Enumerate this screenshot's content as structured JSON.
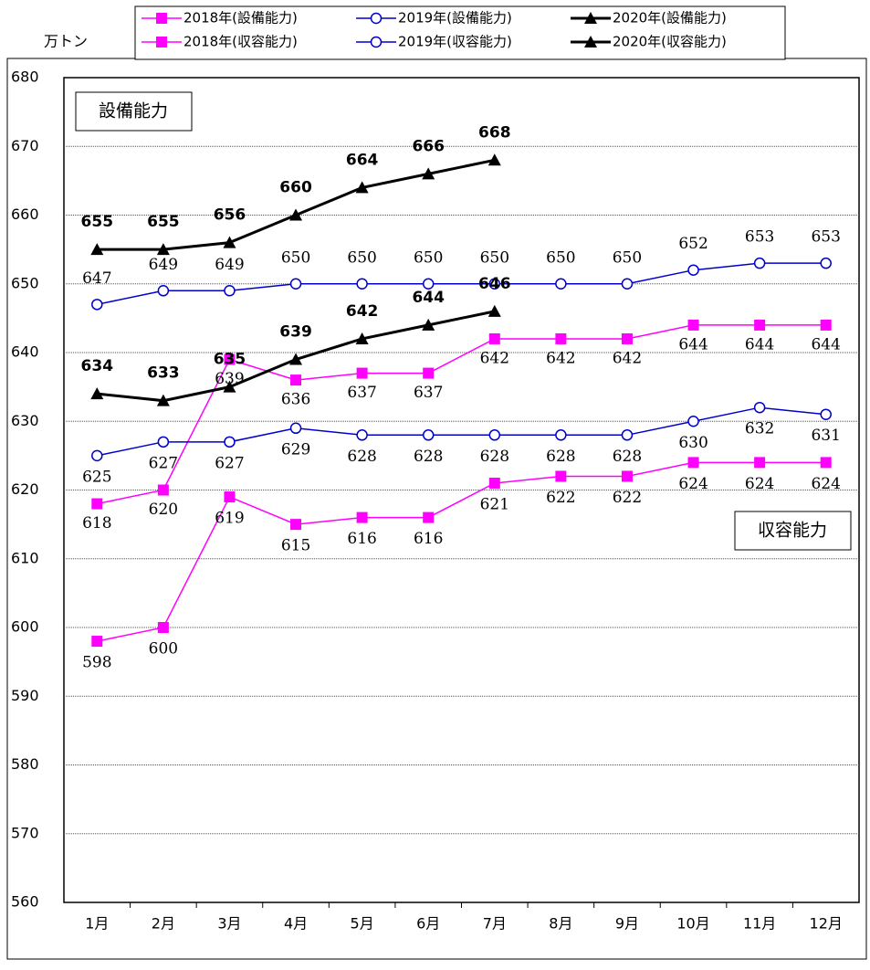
{
  "chart_data": {
    "type": "line",
    "y_label": "万トン",
    "annotations": [
      "設備能力",
      "収容能力"
    ],
    "categories": [
      "1月",
      "2月",
      "3月",
      "4月",
      "5月",
      "6月",
      "7月",
      "8月",
      "9月",
      "10月",
      "11月",
      "12月"
    ],
    "series": [
      {
        "name": "2018年(設備能力)",
        "color": "#ff00ff",
        "marker": "square",
        "values": [
          618,
          620,
          639,
          636,
          637,
          637,
          642,
          642,
          642,
          644,
          644,
          644
        ]
      },
      {
        "name": "2019年(設備能力)",
        "color": "#0000cc",
        "marker": "circle",
        "values": [
          647,
          649,
          649,
          650,
          650,
          650,
          650,
          650,
          650,
          652,
          653,
          653
        ]
      },
      {
        "name": "2020年(設備能力)",
        "color": "#000000",
        "marker": "triangle",
        "label_bold": true,
        "values": [
          655,
          655,
          656,
          660,
          664,
          666,
          668,
          null,
          null,
          null,
          null,
          null
        ]
      },
      {
        "name": "2018年(収容能力)",
        "color": "#ff00ff",
        "marker": "square",
        "values": [
          598,
          600,
          619,
          615,
          616,
          616,
          621,
          622,
          622,
          624,
          624,
          624
        ]
      },
      {
        "name": "2019年(収容能力)",
        "color": "#0000cc",
        "marker": "circle",
        "values": [
          625,
          627,
          627,
          629,
          628,
          628,
          628,
          628,
          628,
          630,
          632,
          631
        ]
      },
      {
        "name": "2020年(収容能力)",
        "color": "#000000",
        "marker": "triangle",
        "label_bold": true,
        "values": [
          634,
          633,
          635,
          639,
          642,
          644,
          646,
          null,
          null,
          null,
          null,
          null
        ]
      }
    ],
    "ylim": [
      560,
      680
    ],
    "yticks": [
      560,
      570,
      580,
      590,
      600,
      610,
      620,
      630,
      640,
      650,
      660,
      670,
      680
    ],
    "grid": true
  }
}
